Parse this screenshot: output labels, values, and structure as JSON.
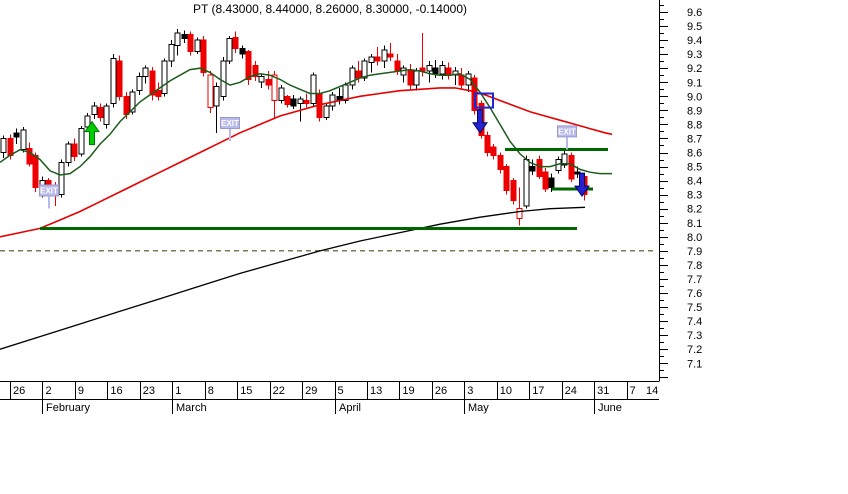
{
  "window": {
    "background": "#ffffff"
  },
  "chart_data": {
    "type": "candlestick",
    "title": "PT (8.43000, 8.44000, 8.26000, 8.30000, -0.14000)",
    "last_quote": {
      "open": 8.43,
      "high": 8.44,
      "low": 8.26,
      "close": 8.3,
      "change": -0.14
    },
    "ylim": [
      7.05,
      9.68
    ],
    "y_ticks": {
      "label_min": 7.1,
      "label_max": 9.6,
      "step": 0.1,
      "minor_step": 0.05
    },
    "x_axis": {
      "week_labels": [
        "26",
        "2",
        "9",
        "16",
        "23",
        "1",
        "8",
        "15",
        "22",
        "29",
        "5",
        "13",
        "19",
        "26",
        "3",
        "10",
        "17",
        "24",
        "31",
        "7",
        "14"
      ],
      "months": [
        {
          "label": "February",
          "week_index": 1
        },
        {
          "label": "March",
          "week_index": 5
        },
        {
          "label": "April",
          "week_index": 10
        },
        {
          "label": "May",
          "week_index": 14
        },
        {
          "label": "June",
          "week_index": 18
        }
      ]
    },
    "colors": {
      "up_fill": "#ffffff",
      "down_fill": "#ee0000",
      "neutral_fill": "#000000",
      "outline": "#000000",
      "short_ma": "#1c5c1c",
      "long_ma": "#e60000",
      "slow_ma": "#000000",
      "support_resistance": "#006600",
      "dashed_level": "#7a7a55",
      "signal_blue": "#2323cf",
      "signal_green": "#00cc00",
      "exit_label_bg": "#b9b9ea"
    },
    "candles": [
      [
        8.6,
        8.72,
        8.56,
        8.7,
        "w"
      ],
      [
        8.7,
        8.73,
        8.55,
        8.58,
        "r"
      ],
      [
        8.71,
        8.77,
        8.66,
        8.74,
        "b"
      ],
      [
        8.62,
        8.78,
        8.6,
        8.76,
        "w"
      ],
      [
        8.63,
        8.67,
        8.5,
        8.52,
        "r"
      ],
      [
        8.58,
        8.6,
        8.32,
        8.35,
        "r"
      ],
      [
        8.32,
        8.43,
        8.28,
        8.4,
        "w"
      ],
      [
        8.4,
        8.42,
        8.25,
        8.31,
        "r"
      ],
      [
        8.33,
        8.39,
        8.22,
        8.32,
        "r"
      ],
      [
        8.3,
        8.55,
        8.28,
        8.53,
        "w"
      ],
      [
        8.53,
        8.68,
        8.5,
        8.66,
        "w"
      ],
      [
        8.66,
        8.7,
        8.54,
        8.57,
        "r"
      ],
      [
        8.59,
        8.79,
        8.57,
        8.77,
        "w"
      ],
      [
        8.78,
        8.88,
        8.75,
        8.86,
        "w"
      ],
      [
        8.87,
        8.96,
        8.84,
        8.93,
        "w"
      ],
      [
        8.92,
        8.95,
        8.82,
        8.85,
        "r"
      ],
      [
        8.8,
        8.95,
        8.77,
        8.93,
        "w"
      ],
      [
        8.95,
        9.3,
        8.92,
        9.27,
        "w"
      ],
      [
        9.25,
        9.29,
        8.97,
        9.0,
        "r"
      ],
      [
        9.0,
        9.03,
        8.84,
        8.87,
        "r"
      ],
      [
        8.89,
        9.05,
        8.87,
        9.03,
        "w"
      ],
      [
        9.04,
        9.17,
        9.01,
        9.14,
        "w"
      ],
      [
        9.14,
        9.22,
        9.09,
        9.2,
        "w"
      ],
      [
        9.18,
        9.21,
        8.97,
        9.01,
        "r"
      ],
      [
        9.04,
        9.1,
        8.97,
        9.0,
        "r"
      ],
      [
        9.02,
        9.27,
        9.0,
        9.25,
        "w"
      ],
      [
        9.25,
        9.4,
        9.21,
        9.37,
        "w"
      ],
      [
        9.36,
        9.48,
        9.29,
        9.45,
        "w"
      ],
      [
        9.41,
        9.47,
        9.38,
        9.44,
        "b"
      ],
      [
        9.44,
        9.46,
        9.29,
        9.32,
        "r"
      ],
      [
        9.32,
        9.42,
        9.3,
        9.4,
        "w"
      ],
      [
        9.4,
        9.43,
        9.14,
        9.17,
        "r"
      ],
      [
        9.15,
        9.18,
        8.88,
        8.92,
        "rh"
      ],
      [
        8.93,
        9.1,
        8.74,
        9.07,
        "w"
      ],
      [
        9.0,
        9.28,
        8.97,
        9.25,
        "w"
      ],
      [
        9.25,
        9.43,
        9.23,
        9.41,
        "w"
      ],
      [
        9.42,
        9.46,
        9.31,
        9.34,
        "r"
      ],
      [
        9.34,
        9.36,
        9.27,
        9.3,
        "b"
      ],
      [
        9.32,
        9.33,
        9.08,
        9.12,
        "r"
      ],
      [
        9.22,
        9.25,
        9.11,
        9.14,
        "r"
      ],
      [
        9.1,
        9.16,
        9.06,
        9.14,
        "w"
      ],
      [
        9.12,
        9.18,
        9.05,
        9.08,
        "r"
      ],
      [
        9.15,
        9.18,
        8.84,
        8.97,
        "rh"
      ],
      [
        8.97,
        9.08,
        8.95,
        9.06,
        "w"
      ],
      [
        9.0,
        9.01,
        8.92,
        8.94,
        "r"
      ],
      [
        8.98,
        9.01,
        8.91,
        8.93,
        "b"
      ],
      [
        8.95,
        9.0,
        8.82,
        8.98,
        "w"
      ],
      [
        8.97,
        9.02,
        8.92,
        8.95,
        "r"
      ],
      [
        8.95,
        9.17,
        8.93,
        9.15,
        "w"
      ],
      [
        9.02,
        9.05,
        8.82,
        8.85,
        "r"
      ],
      [
        8.85,
        8.95,
        8.83,
        8.93,
        "w"
      ],
      [
        8.93,
        9.03,
        8.9,
        9.01,
        "w"
      ],
      [
        9.0,
        9.06,
        8.94,
        8.97,
        "b"
      ],
      [
        8.97,
        9.1,
        8.95,
        9.08,
        "w"
      ],
      [
        9.08,
        9.22,
        9.05,
        9.2,
        "w"
      ],
      [
        9.18,
        9.25,
        9.1,
        9.13,
        "r"
      ],
      [
        9.13,
        9.27,
        9.11,
        9.25,
        "w"
      ],
      [
        9.24,
        9.3,
        9.17,
        9.28,
        "w"
      ],
      [
        9.28,
        9.35,
        9.22,
        9.25,
        "r"
      ],
      [
        9.25,
        9.36,
        9.2,
        9.33,
        "w"
      ],
      [
        9.3,
        9.38,
        9.25,
        9.28,
        "r"
      ],
      [
        9.25,
        9.3,
        9.15,
        9.18,
        "r"
      ],
      [
        9.15,
        9.22,
        9.1,
        9.2,
        "w"
      ],
      [
        9.18,
        9.23,
        9.05,
        9.08,
        "r"
      ],
      [
        9.08,
        9.2,
        9.04,
        9.18,
        "w"
      ],
      [
        9.18,
        9.45,
        9.14,
        9.2,
        "r"
      ],
      [
        9.18,
        9.25,
        9.1,
        9.22,
        "w"
      ],
      [
        9.2,
        9.26,
        9.13,
        9.16,
        "b"
      ],
      [
        9.16,
        9.25,
        9.12,
        9.22,
        "w"
      ],
      [
        9.2,
        9.24,
        9.12,
        9.15,
        "r"
      ],
      [
        9.15,
        9.21,
        9.08,
        9.18,
        "w"
      ],
      [
        9.15,
        9.2,
        9.05,
        9.08,
        "r"
      ],
      [
        9.08,
        9.18,
        9.03,
        9.16,
        "w"
      ],
      [
        9.13,
        9.15,
        8.87,
        8.9,
        "r"
      ],
      [
        8.95,
        8.97,
        8.7,
        8.72,
        "r"
      ],
      [
        8.72,
        8.75,
        8.57,
        8.6,
        "r"
      ],
      [
        8.64,
        8.66,
        8.55,
        8.58,
        "r"
      ],
      [
        8.58,
        8.6,
        8.45,
        8.48,
        "r"
      ],
      [
        8.5,
        8.52,
        8.3,
        8.33,
        "r"
      ],
      [
        8.4,
        8.42,
        8.23,
        8.26,
        "r"
      ],
      [
        8.2,
        8.35,
        8.08,
        8.13,
        "rh"
      ],
      [
        8.22,
        8.58,
        8.2,
        8.55,
        "w"
      ],
      [
        8.5,
        8.55,
        8.44,
        8.47,
        "b"
      ],
      [
        8.55,
        8.58,
        8.41,
        8.43,
        "r"
      ],
      [
        8.46,
        8.49,
        8.32,
        8.34,
        "r"
      ],
      [
        8.42,
        8.45,
        8.32,
        8.35,
        "b"
      ],
      [
        8.47,
        8.57,
        8.45,
        8.55,
        "w"
      ],
      [
        8.51,
        8.61,
        8.49,
        8.59,
        "w"
      ],
      [
        8.58,
        8.6,
        8.39,
        8.41,
        "r"
      ],
      [
        8.45,
        8.5,
        8.42,
        8.46,
        "b"
      ],
      [
        8.43,
        8.44,
        8.26,
        8.3,
        "r"
      ]
    ],
    "overlays": {
      "short_ma_points": [
        [
          0,
          8.53
        ],
        [
          10,
          8.58
        ],
        [
          20,
          8.62
        ],
        [
          30,
          8.6
        ],
        [
          40,
          8.55
        ],
        [
          50,
          8.47
        ],
        [
          60,
          8.44
        ],
        [
          70,
          8.45
        ],
        [
          80,
          8.5
        ],
        [
          90,
          8.57
        ],
        [
          100,
          8.66
        ],
        [
          110,
          8.73
        ],
        [
          120,
          8.82
        ],
        [
          130,
          8.89
        ],
        [
          140,
          8.96
        ],
        [
          150,
          9.01
        ],
        [
          160,
          9.06
        ],
        [
          170,
          9.11
        ],
        [
          180,
          9.15
        ],
        [
          190,
          9.19
        ],
        [
          200,
          9.2
        ],
        [
          210,
          9.17
        ],
        [
          220,
          9.12
        ],
        [
          230,
          9.08
        ],
        [
          240,
          9.1
        ],
        [
          250,
          9.14
        ],
        [
          260,
          9.16
        ],
        [
          270,
          9.15
        ],
        [
          280,
          9.12
        ],
        [
          290,
          9.08
        ],
        [
          300,
          9.05
        ],
        [
          310,
          9.02
        ],
        [
          320,
          9.02
        ],
        [
          330,
          9.04
        ],
        [
          340,
          9.07
        ],
        [
          350,
          9.1
        ],
        [
          360,
          9.13
        ],
        [
          370,
          9.15
        ],
        [
          380,
          9.16
        ],
        [
          390,
          9.17
        ],
        [
          400,
          9.18
        ],
        [
          410,
          9.19
        ],
        [
          420,
          9.18
        ],
        [
          430,
          9.16
        ],
        [
          440,
          9.15
        ],
        [
          450,
          9.15
        ],
        [
          460,
          9.16
        ],
        [
          470,
          9.12
        ],
        [
          480,
          9.03
        ],
        [
          490,
          8.92
        ],
        [
          500,
          8.8
        ],
        [
          510,
          8.68
        ],
        [
          520,
          8.59
        ],
        [
          530,
          8.53
        ],
        [
          540,
          8.5
        ],
        [
          550,
          8.5
        ],
        [
          560,
          8.52
        ],
        [
          570,
          8.52
        ],
        [
          580,
          8.48
        ],
        [
          590,
          8.46
        ],
        [
          600,
          8.45
        ],
        [
          612,
          8.45
        ]
      ],
      "long_ma_points": [
        [
          0,
          8.0
        ],
        [
          20,
          8.03
        ],
        [
          40,
          8.06
        ],
        [
          60,
          8.12
        ],
        [
          80,
          8.18
        ],
        [
          100,
          8.25
        ],
        [
          120,
          8.32
        ],
        [
          140,
          8.39
        ],
        [
          160,
          8.46
        ],
        [
          180,
          8.53
        ],
        [
          200,
          8.6
        ],
        [
          220,
          8.67
        ],
        [
          240,
          8.74
        ],
        [
          260,
          8.8
        ],
        [
          280,
          8.86
        ],
        [
          300,
          8.9
        ],
        [
          320,
          8.94
        ],
        [
          340,
          8.97
        ],
        [
          360,
          9.0
        ],
        [
          380,
          9.02
        ],
        [
          400,
          9.04
        ],
        [
          420,
          9.05
        ],
        [
          440,
          9.06
        ],
        [
          455,
          9.06
        ],
        [
          470,
          9.04
        ],
        [
          485,
          9.01
        ],
        [
          500,
          8.97
        ],
        [
          515,
          8.93
        ],
        [
          530,
          8.89
        ],
        [
          545,
          8.86
        ],
        [
          560,
          8.83
        ],
        [
          575,
          8.8
        ],
        [
          590,
          8.77
        ],
        [
          605,
          8.74
        ],
        [
          612,
          8.73
        ]
      ],
      "slow_ma_points": [
        [
          0,
          7.2
        ],
        [
          40,
          7.29
        ],
        [
          80,
          7.38
        ],
        [
          120,
          7.47
        ],
        [
          160,
          7.56
        ],
        [
          200,
          7.65
        ],
        [
          240,
          7.74
        ],
        [
          280,
          7.82
        ],
        [
          320,
          7.9
        ],
        [
          360,
          7.97
        ],
        [
          400,
          8.03
        ],
        [
          440,
          8.09
        ],
        [
          480,
          8.14
        ],
        [
          520,
          8.18
        ],
        [
          550,
          8.2
        ],
        [
          585,
          8.21
        ]
      ],
      "green_lines": [
        {
          "price": 8.06,
          "x1": 40,
          "x2": 577
        },
        {
          "price": 8.62,
          "x1": 505,
          "x2": 608
        },
        {
          "price": 8.34,
          "x1": 552,
          "x2": 593
        }
      ],
      "dashed_line": {
        "price": 7.9,
        "x1": 0,
        "x2": 656
      },
      "signals": [
        {
          "type": "exit-label",
          "text": "EXIT",
          "x": 49,
          "price": 8.33
        },
        {
          "type": "exit-label",
          "text": "EXIT",
          "x": 230,
          "price": 8.81
        },
        {
          "type": "exit-label",
          "text": "EXIT",
          "x": 567,
          "price": 8.75
        },
        {
          "type": "up-arrow",
          "x": 92,
          "tip_price": 8.82
        },
        {
          "type": "down-arrow",
          "x": 480,
          "tip_price": 8.74
        },
        {
          "type": "down-arrow",
          "x": 582,
          "tip_price": 8.29
        },
        {
          "type": "box",
          "x1": 475,
          "x2": 493,
          "price_top": 9.02,
          "price_bottom": 8.92
        }
      ]
    }
  }
}
